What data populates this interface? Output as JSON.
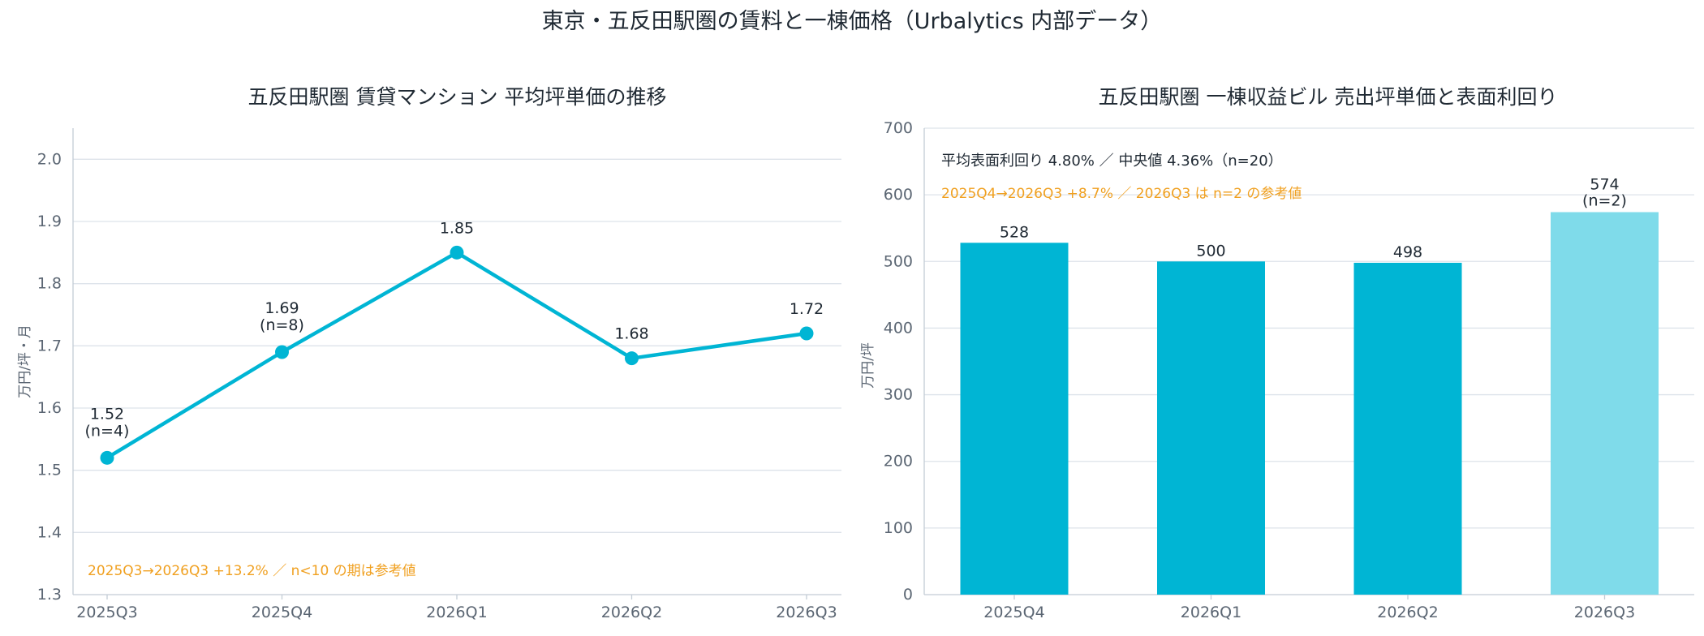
{
  "figure_title": "東京・五反田駅圏の賃料と一棟価格（Urbalytics 内部データ）",
  "colors": {
    "primary": "#00b5d4",
    "reference": "#7fdbea",
    "note": "#f0a020",
    "text": "#1f2933"
  },
  "chart_data": [
    {
      "type": "line",
      "title": "五反田駅圏 賃貸マンション 平均坪単価の推移",
      "ylabel": "万円/坪・月",
      "xlabel": "",
      "categories": [
        "2025Q3",
        "2025Q4",
        "2026Q1",
        "2026Q2",
        "2026Q3"
      ],
      "values": [
        1.52,
        1.69,
        1.85,
        1.68,
        1.72
      ],
      "value_labels": [
        "1.52",
        "1.69",
        "1.85",
        "1.68",
        "1.72"
      ],
      "counts": [
        "(n=4)",
        "(n=8)",
        "",
        "",
        ""
      ],
      "ylim": [
        1.3,
        2.05
      ],
      "yticks": [
        1.3,
        1.4,
        1.5,
        1.6,
        1.7,
        1.8,
        1.9,
        2.0
      ],
      "ytick_labels": [
        "1.3",
        "1.4",
        "1.5",
        "1.6",
        "1.7",
        "1.8",
        "1.9",
        "2.0"
      ],
      "grid": true,
      "annotation": "2025Q3→2026Q3  +13.2%  ／ n<10 の期は参考値"
    },
    {
      "type": "bar",
      "title": "五反田駅圏 一棟収益ビル 売出坪単価と表面利回り",
      "ylabel": "万円/坪",
      "xlabel": "",
      "categories": [
        "2025Q4",
        "2026Q1",
        "2026Q2",
        "2026Q3"
      ],
      "values": [
        528,
        500,
        498,
        574
      ],
      "value_labels": [
        "528",
        "500",
        "498",
        "574"
      ],
      "counts": [
        "",
        "",
        "",
        "(n=2)"
      ],
      "reference_flags": [
        false,
        false,
        false,
        true
      ],
      "ylim": [
        0,
        700
      ],
      "yticks": [
        0,
        100,
        200,
        300,
        400,
        500,
        600,
        700
      ],
      "ytick_labels": [
        "0",
        "100",
        "200",
        "300",
        "400",
        "500",
        "600",
        "700"
      ],
      "grid": true,
      "annotation_summary": "平均表面利回り 4.80% ／ 中央値 4.36%（n=20）",
      "annotation": "2025Q4→2026Q3  +8.7% ／ 2026Q3 は n=2 の参考値"
    }
  ]
}
